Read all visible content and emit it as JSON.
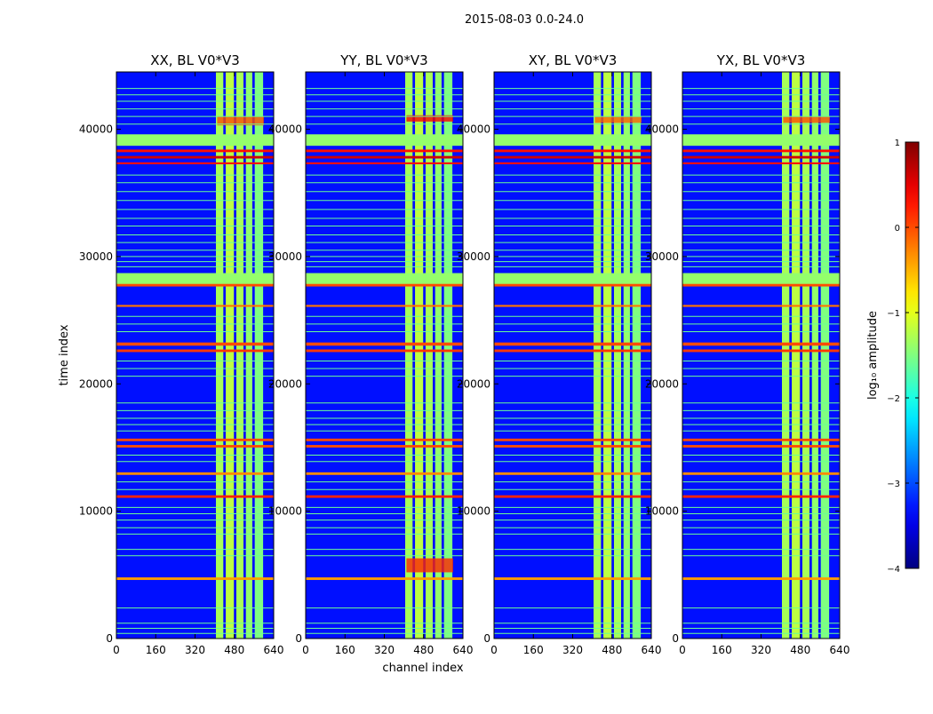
{
  "chart_data": {
    "type": "heatmap",
    "suptitle": "2015-08-03 0.0-24.0",
    "xlabel": "channel index",
    "ylabel": "time index",
    "xlim": [
      0,
      640
    ],
    "ylim": [
      0,
      44500
    ],
    "xticks": [
      "0",
      "160",
      "320",
      "480",
      "640"
    ],
    "yticks": [
      "0",
      "10000",
      "20000",
      "30000",
      "40000"
    ],
    "panels": [
      {
        "title": "XX, BL V0*V3",
        "pol": "XX"
      },
      {
        "title": "YY, BL V0*V3",
        "pol": "YY"
      },
      {
        "title": "XY, BL V0*V3",
        "pol": "XY"
      },
      {
        "title": "YX, BL V0*V3",
        "pol": "YX"
      }
    ],
    "colorbar": {
      "label": "log₁₀ amplitude",
      "vmin": -4,
      "vmax": 1,
      "ticks": [
        "1",
        "0",
        "−1",
        "−2",
        "−3",
        "−4"
      ],
      "colormap": "jet"
    },
    "background_log_amplitude": -3.3,
    "bright_channel_columns": [
      {
        "start": 405,
        "end": 435,
        "log_amplitude": -1.3
      },
      {
        "start": 445,
        "end": 478,
        "log_amplitude": -1.2
      },
      {
        "start": 488,
        "end": 517,
        "log_amplitude": -1.3
      },
      {
        "start": 527,
        "end": 553,
        "log_amplitude": -1.4
      },
      {
        "start": 563,
        "end": 597,
        "log_amplitude": -1.5
      }
    ],
    "flagged_time_bands": [
      {
        "t0": 38700,
        "t1": 39600,
        "log_amplitude": -1.4
      },
      {
        "t0": 27700,
        "t1": 28700,
        "log_amplitude": -1.4
      },
      {
        "t0": 38200,
        "t1": 38400,
        "log_amplitude": 0.3
      },
      {
        "t0": 37700,
        "t1": 37900,
        "log_amplitude": 0.6
      },
      {
        "t0": 37250,
        "t1": 37400,
        "log_amplitude": 0.3
      },
      {
        "t0": 27650,
        "t1": 27850,
        "log_amplitude": 0.0
      },
      {
        "t0": 26050,
        "t1": 26200,
        "log_amplitude": -0.2
      },
      {
        "t0": 23000,
        "t1": 23250,
        "log_amplitude": 0.0
      },
      {
        "t0": 22500,
        "t1": 22700,
        "log_amplitude": 0.1
      },
      {
        "t0": 15500,
        "t1": 15700,
        "log_amplitude": 0.0
      },
      {
        "t0": 15000,
        "t1": 15200,
        "log_amplitude": 0.0
      },
      {
        "t0": 12850,
        "t1": 13050,
        "log_amplitude": -0.3
      },
      {
        "t0": 11050,
        "t1": 11250,
        "log_amplitude": 0.2
      },
      {
        "t0": 4600,
        "t1": 4800,
        "log_amplitude": -0.4
      }
    ],
    "thin_flag_lines": [
      43200,
      42700,
      42200,
      41600,
      41000,
      40400,
      36400,
      35800,
      35100,
      34400,
      33700,
      33000,
      32400,
      31700,
      31100,
      30500,
      30000,
      29600,
      29200,
      25300,
      24700,
      24100,
      21800,
      21200,
      20600,
      18500,
      17900,
      17300,
      16800,
      16300,
      14400,
      13900,
      12300,
      11700,
      10300,
      9800,
      9300,
      8700,
      8200,
      7000,
      6500,
      2400,
      1200,
      800,
      400
    ],
    "bright_patches": [
      {
        "pol": "YY",
        "c0": 410,
        "c1": 600,
        "t0": 5200,
        "t1": 6300,
        "log_amplitude": 0.2
      },
      {
        "pol": "XX",
        "c0": 410,
        "c1": 600,
        "t0": 40300,
        "t1": 41000,
        "log_amplitude": 0.0
      },
      {
        "pol": "YY",
        "c0": 410,
        "c1": 600,
        "t0": 40600,
        "t1": 41100,
        "log_amplitude": 0.4
      },
      {
        "pol": "XY",
        "c0": 410,
        "c1": 600,
        "t0": 40500,
        "t1": 41000,
        "log_amplitude": -0.1
      },
      {
        "pol": "YX",
        "c0": 410,
        "c1": 600,
        "t0": 40500,
        "t1": 41000,
        "log_amplitude": 0.0
      }
    ]
  }
}
